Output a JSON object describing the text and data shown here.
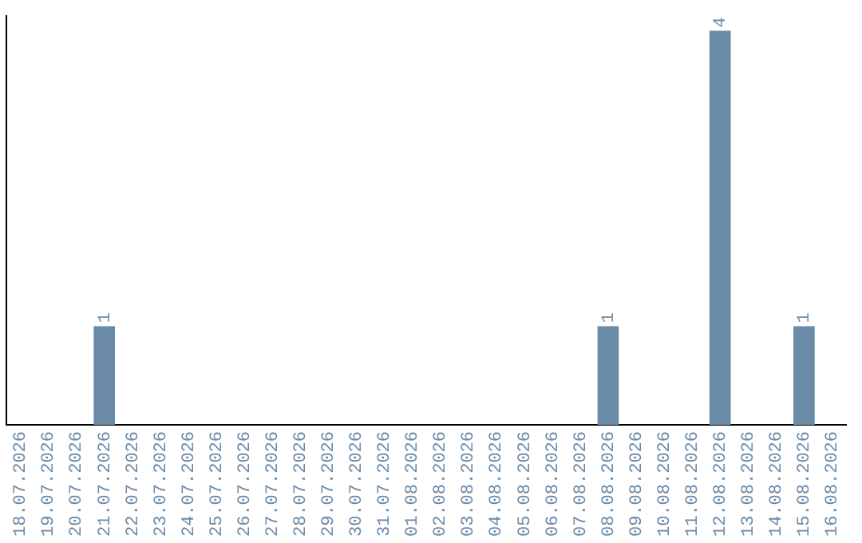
{
  "chart_data": {
    "type": "bar",
    "categories": [
      "18.07.2026",
      "19.07.2026",
      "20.07.2026",
      "21.07.2026",
      "22.07.2026",
      "23.07.2026",
      "24.07.2026",
      "25.07.2026",
      "26.07.2026",
      "27.07.2026",
      "28.07.2026",
      "29.07.2026",
      "30.07.2026",
      "31.07.2026",
      "01.08.2026",
      "02.08.2026",
      "03.08.2026",
      "04.08.2026",
      "05.08.2026",
      "06.08.2026",
      "07.08.2026",
      "08.08.2026",
      "09.08.2026",
      "10.08.2026",
      "11.08.2026",
      "12.08.2026",
      "13.08.2026",
      "14.08.2026",
      "15.08.2026",
      "16.08.2026"
    ],
    "values": [
      0,
      0,
      0,
      1,
      0,
      0,
      0,
      0,
      0,
      0,
      0,
      0,
      0,
      0,
      0,
      0,
      0,
      0,
      0,
      0,
      0,
      1,
      0,
      0,
      0,
      4,
      0,
      0,
      1,
      0
    ],
    "value_labels": [
      null,
      null,
      null,
      "1",
      null,
      null,
      null,
      null,
      null,
      null,
      null,
      null,
      null,
      null,
      null,
      null,
      null,
      null,
      null,
      null,
      null,
      "1",
      null,
      null,
      null,
      "4",
      null,
      null,
      "1",
      null
    ],
    "color": "#6a8aa8",
    "ylim": [
      0,
      4.15
    ],
    "tick_labels": "x",
    "grid": false,
    "legend": false
  }
}
